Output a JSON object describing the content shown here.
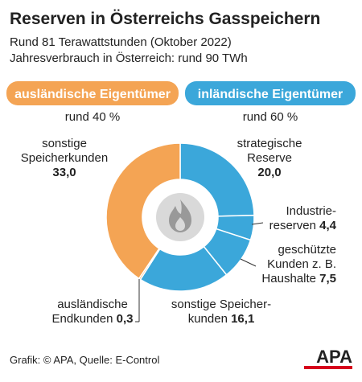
{
  "title": "Reserven in Österreichs Gasspeichern",
  "subtitle_lines": [
    "Rund 81 Terawattstunden (Oktober 2022)",
    "Jahresverbrauch in Österreich: rund 90 TWh"
  ],
  "groups": [
    {
      "name": "ausländische Eigentümer",
      "share_label": "rund 40 %",
      "color": "#f4a454"
    },
    {
      "name": "inländische Eigentümer",
      "share_label": "rund 60 %",
      "color": "#3ba7da"
    }
  ],
  "chart_data": {
    "type": "donut",
    "categories": [
      [
        "strategische",
        "Reserve"
      ],
      [
        "Industrie-",
        "reserven"
      ],
      [
        "geschützte",
        "Kunden z. B.",
        "Haushalte"
      ],
      [
        "sonstige Speicher-",
        "kunden"
      ],
      [
        "ausländische",
        "Endkunden"
      ],
      [
        "sonstige",
        "Speicherkunden"
      ]
    ],
    "values": [
      20.0,
      4.4,
      7.5,
      16.1,
      0.3,
      33.0
    ],
    "value_labels": [
      "20,0",
      "4,4",
      "7,5",
      "16,1",
      "0,3",
      "33,0"
    ],
    "colors": [
      "#3ba7da",
      "#3ba7da",
      "#3ba7da",
      "#3ba7da",
      "#f4a454",
      "#f4a454"
    ]
  },
  "footer": "Grafik: © APA, Quelle: E-Control",
  "logo": "APA"
}
